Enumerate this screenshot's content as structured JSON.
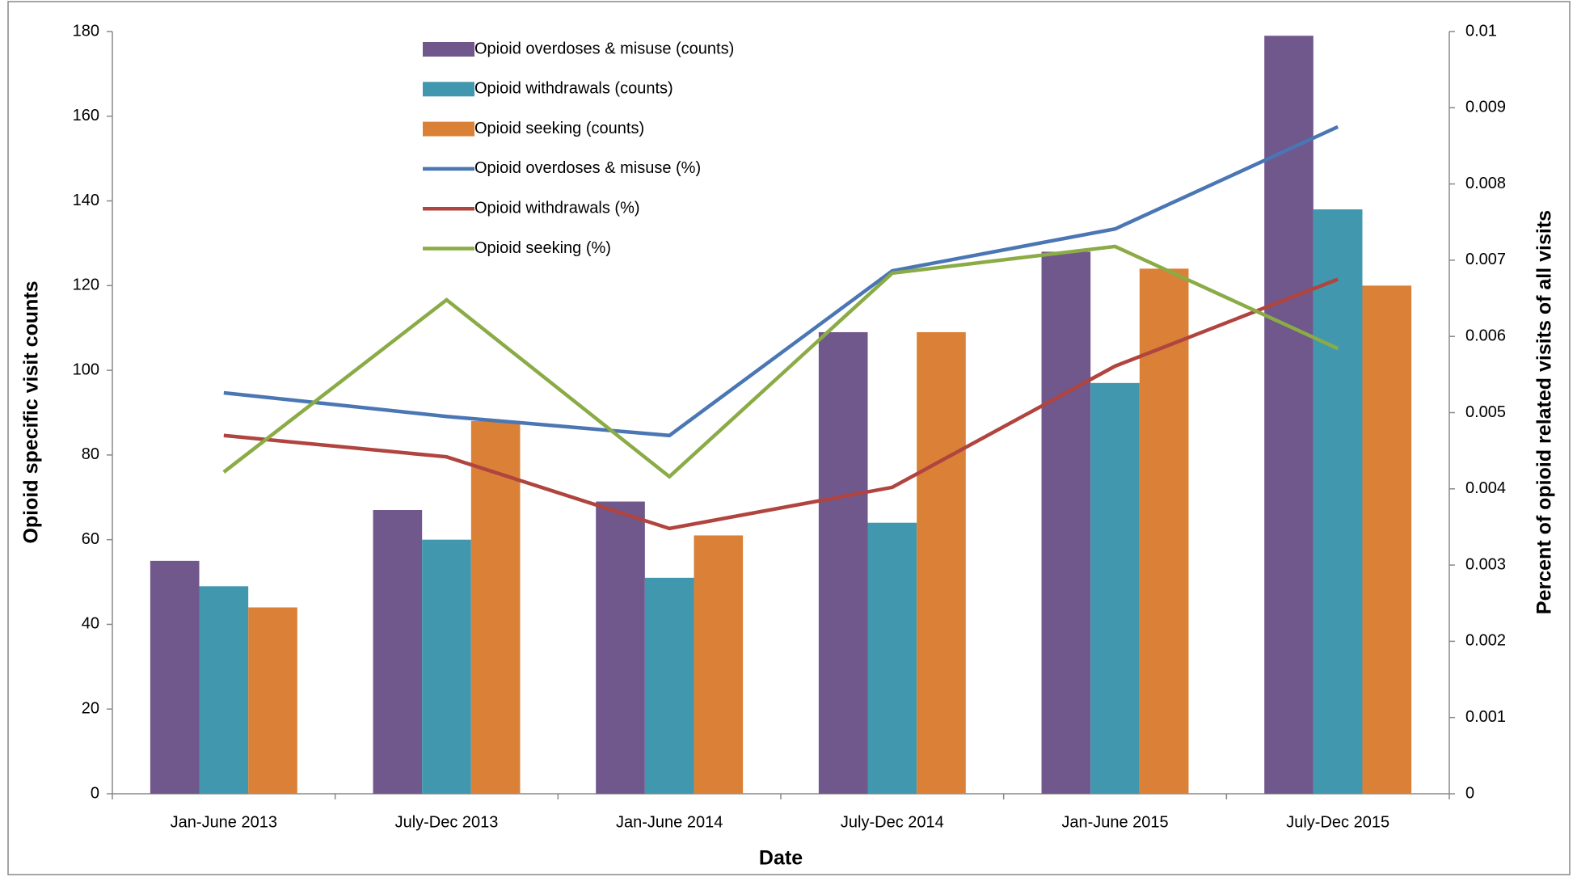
{
  "chart_data": {
    "type": "bar",
    "x_label": "Date",
    "y_label": "Opioid specific visit counts",
    "y2_label": "Percent of opioid related visits of all visits",
    "categories": [
      "Jan-June 2013",
      "July-Dec 2013",
      "Jan-June 2014",
      "July-Dec 2014",
      "Jan-June 2015",
      "July-Dec 2015"
    ],
    "series": [
      {
        "name": "Opioid overdoses & misuse (counts)",
        "type": "bar",
        "color": "#70578c",
        "values": [
          55,
          67,
          69,
          109,
          128,
          179
        ]
      },
      {
        "name": "Opioid withdrawals  (counts)",
        "type": "bar",
        "color": "#4198ae",
        "values": [
          49,
          60,
          51,
          64,
          97,
          138
        ]
      },
      {
        "name": "Opioid seeking (counts)",
        "type": "bar",
        "color": "#da8137",
        "values": [
          44,
          88,
          61,
          109,
          124,
          120
        ]
      },
      {
        "name": "Opioid overdoses & misuse (%)",
        "type": "line",
        "axis": "y2",
        "color": "#4a76b4",
        "values": [
          0.00526,
          0.00495,
          0.0047,
          0.00686,
          0.00741,
          0.00875
        ]
      },
      {
        "name": "Opioid withdrawals  (%)",
        "type": "line",
        "axis": "y2",
        "color": "#b0443f",
        "values": [
          0.0047,
          0.00442,
          0.00348,
          0.00402,
          0.00561,
          0.00675
        ]
      },
      {
        "name": "Opioid seeking (%)",
        "type": "line",
        "axis": "y2",
        "color": "#8aab45",
        "values": [
          0.00422,
          0.00648,
          0.00416,
          0.00683,
          0.00718,
          0.00584
        ]
      }
    ],
    "ylim": [
      0,
      180
    ],
    "yticks": [
      0,
      20,
      40,
      60,
      80,
      100,
      120,
      140,
      160,
      180
    ],
    "y2lim": [
      0,
      0.01
    ],
    "y2ticks": [
      0,
      0.001,
      0.002,
      0.003,
      0.004,
      0.005,
      0.006,
      0.007,
      0.008,
      0.009,
      0.01
    ],
    "grid": false,
    "legend": "top"
  }
}
